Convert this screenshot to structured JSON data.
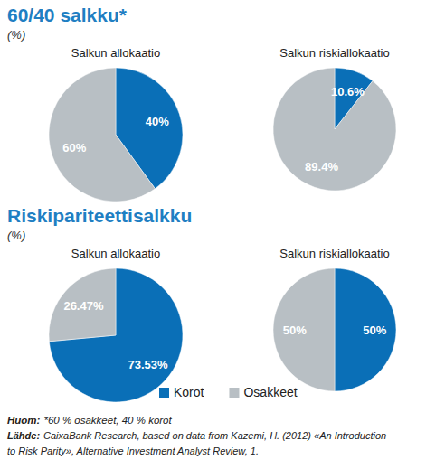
{
  "sections": [
    {
      "title": "60/40 salkku*",
      "subtitle": "(%)"
    },
    {
      "title": "Riskipariteettisalkku",
      "subtitle": "(%)"
    }
  ],
  "chart_data": [
    {
      "type": "pie",
      "title": "Salkun allokaatio",
      "categories": [
        "Korot",
        "Osakkeet"
      ],
      "values": [
        40,
        60
      ],
      "value_labels": [
        "40%",
        "60%"
      ],
      "colors": [
        "#0a6fb7",
        "#b8bfc4"
      ],
      "data_labels": true
    },
    {
      "type": "pie",
      "title": "Salkun riskiallokaatio",
      "categories": [
        "Korot",
        "Osakkeet"
      ],
      "values": [
        10.6,
        89.4
      ],
      "value_labels": [
        "10.6%",
        "89.4%"
      ],
      "colors": [
        "#0a6fb7",
        "#b8bfc4"
      ],
      "data_labels": true
    },
    {
      "type": "pie",
      "title": "Salkun allokaatio",
      "categories": [
        "Korot",
        "Osakkeet"
      ],
      "values": [
        73.53,
        26.47
      ],
      "value_labels": [
        "73.53%",
        "26.47%"
      ],
      "colors": [
        "#0a6fb7",
        "#b8bfc4"
      ],
      "data_labels": true
    },
    {
      "type": "pie",
      "title": "Salkun riskiallokaatio",
      "categories": [
        "Korot",
        "Osakkeet"
      ],
      "values": [
        50,
        50
      ],
      "value_labels": [
        "50%",
        "50%"
      ],
      "colors": [
        "#0a6fb7",
        "#b8bfc4"
      ],
      "data_labels": true
    }
  ],
  "notes": {
    "note": {
      "label": "Huom:",
      "text": "*60 % osakkeet, 40 % korot"
    },
    "source": {
      "label": "Lähde:",
      "lines": [
        "CaixaBank Research, based on data from Kazemi, H. (2012) «An Introduction",
        "to Risk Parity», Alternative Investment Analyst Review, 1."
      ]
    }
  }
}
